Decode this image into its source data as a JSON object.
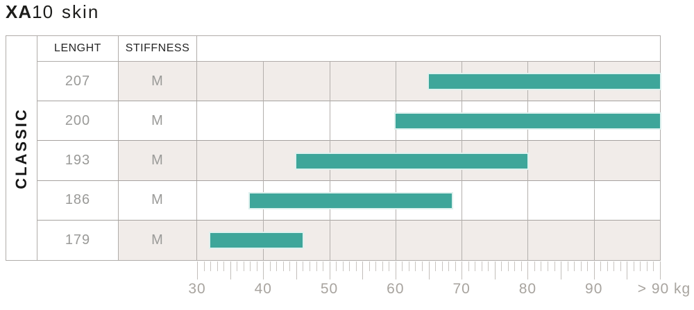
{
  "title": {
    "series_bold": "XA",
    "model": "10",
    "variant": "skin"
  },
  "chart_data": {
    "type": "bar",
    "orientation": "horizontal-range",
    "title": "XA10 skin",
    "category_group": "CLASSIC",
    "columns": [
      "LENGHT",
      "STIFFNESS"
    ],
    "rows": [
      {
        "length": "207",
        "stiffness": "M",
        "weight_range_kg": "65 - >90",
        "bar": {
          "from": 65,
          "to": 100
        }
      },
      {
        "length": "200",
        "stiffness": "M",
        "weight_range_kg": "60 - >90",
        "bar": {
          "from": 60,
          "to": 100
        }
      },
      {
        "length": "193",
        "stiffness": "M",
        "weight_range_kg": "45 - 80",
        "bar": {
          "from": 45,
          "to": 80
        }
      },
      {
        "length": "186",
        "stiffness": "M",
        "weight_range_kg": "38 - 68",
        "bar": {
          "from": 38,
          "to": 68.5
        }
      },
      {
        "length": "179",
        "stiffness": "M",
        "weight_range_kg": "32 - 46",
        "bar": {
          "from": 32,
          "to": 46
        }
      }
    ],
    "x_axis": {
      "unit": "kg",
      "min": 30,
      "scale_max": 100,
      "gridlines_at": [
        40,
        50,
        60,
        70,
        80,
        90
      ],
      "minor_tick_step": 1,
      "major_tick_step": 5,
      "labels": [
        {
          "value": 30,
          "label": "30"
        },
        {
          "value": 40,
          "label": "40"
        },
        {
          "value": 50,
          "label": "50"
        },
        {
          "value": 60,
          "label": "60"
        },
        {
          "value": 70,
          "label": "70"
        },
        {
          "value": 80,
          "label": "80"
        },
        {
          "value": 90,
          "label": "90"
        },
        {
          "value": 100,
          "label": "> 90 kg"
        }
      ],
      "grid": true,
      "legend": "none"
    },
    "colors": {
      "bar": "#3ea69a",
      "row_stripe": "#f1ece9",
      "border": "#b0aca9",
      "value_text": "#9a9a98",
      "axis_text": "#a8a49f",
      "tick": "#c9c5c1",
      "title_text": "#1d1d1b"
    }
  }
}
